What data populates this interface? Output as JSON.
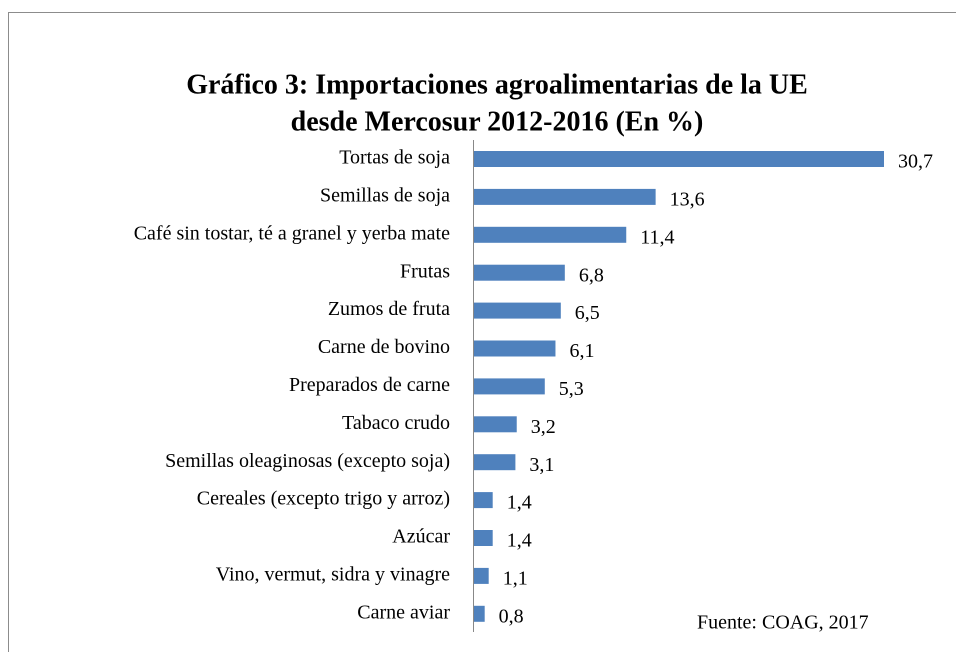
{
  "chart_data": {
    "type": "bar",
    "orientation": "horizontal",
    "title": [
      "Gráfico 3: Importaciones agroalimentarias de la UE",
      "desde Mercosur 2012-2016 (En %)"
    ],
    "categories": [
      "Tortas de soja",
      "Semillas de soja",
      "Café sin tostar, té a granel y yerba mate",
      "Frutas",
      "Zumos de fruta",
      "Carne de bovino",
      "Preparados de carne",
      "Tabaco crudo",
      "Semillas oleaginosas (excepto soja)",
      "Cereales (excepto trigo y arroz)",
      "Azúcar",
      "Vino, vermut, sidra y vinagre",
      "Carne aviar"
    ],
    "values": [
      30.7,
      13.6,
      11.4,
      6.8,
      6.5,
      6.1,
      5.3,
      3.2,
      3.1,
      1.4,
      1.4,
      1.1,
      0.8
    ],
    "value_labels": [
      "30,7",
      "13,6",
      "11,4",
      "6,8",
      "6,5",
      "6,1",
      "5,3",
      "3,2",
      "3,1",
      "1,4",
      "1,4",
      "1,1",
      "0,8"
    ],
    "color": "#4f81bd",
    "source": "Fuente: COAG, 2017"
  }
}
